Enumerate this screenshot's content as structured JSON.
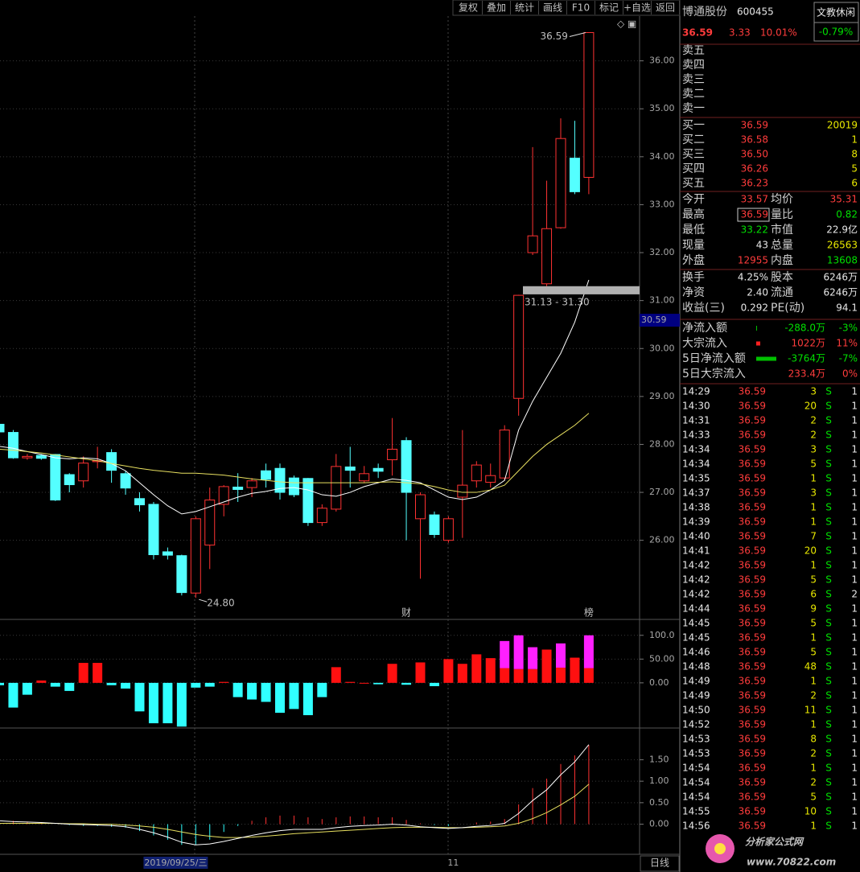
{
  "toolbar": {
    "buttons": [
      "复权",
      "叠加",
      "统计",
      "画线",
      "F10",
      "标记",
      "+自选",
      "返回"
    ]
  },
  "chart_data": [
    {
      "type": "candlestick",
      "categories": [
        null,
        null,
        null,
        null,
        null,
        null,
        null,
        null,
        null,
        null,
        null,
        null,
        "2019/09/25/三",
        null,
        null,
        null,
        null,
        null,
        null,
        null,
        null,
        null,
        null,
        null,
        null,
        null,
        null,
        null,
        null,
        null,
        null,
        null,
        "11",
        null,
        null,
        null,
        null,
        null,
        null,
        null,
        null,
        null,
        null
      ],
      "open": [
        28.42,
        28.25,
        27.72,
        27.77,
        27.79,
        27.37,
        27.24,
        27.64,
        27.83,
        27.39,
        26.87,
        26.75,
        25.76,
        25.68,
        24.9,
        25.9,
        26.75,
        27.11,
        27.1,
        27.45,
        27.5,
        27.3,
        27.29,
        26.37,
        26.65,
        27.53,
        27.24,
        27.5,
        27.68,
        28.08,
        26.45,
        26.53,
        26.0,
        26.9,
        27.24,
        27.21,
        27.3,
        28.96,
        32.0,
        31.35,
        32.52,
        33.97,
        33.57
      ],
      "high": [
        28.45,
        28.3,
        27.8,
        27.8,
        27.8,
        27.4,
        27.75,
        27.95,
        27.9,
        27.45,
        27.0,
        26.8,
        25.85,
        25.7,
        26.5,
        27.1,
        27.15,
        27.4,
        27.3,
        27.6,
        27.6,
        27.35,
        27.3,
        26.75,
        27.8,
        27.95,
        27.55,
        27.6,
        28.55,
        28.15,
        27.0,
        26.6,
        26.5,
        28.3,
        27.65,
        27.6,
        28.4,
        31.12,
        34.2,
        33.5,
        34.8,
        34.75,
        36.59
      ],
      "low": [
        28.2,
        27.7,
        27.68,
        27.68,
        26.82,
        27.0,
        27.1,
        27.5,
        27.2,
        26.95,
        26.6,
        25.6,
        25.6,
        24.85,
        24.8,
        25.4,
        26.5,
        26.8,
        26.9,
        27.1,
        26.85,
        26.9,
        26.3,
        26.3,
        26.6,
        27.1,
        27.2,
        27.3,
        27.35,
        26.0,
        25.2,
        26.05,
        25.95,
        26.05,
        27.1,
        27.1,
        27.25,
        28.6,
        31.95,
        31.3,
        32.5,
        33.22,
        33.22
      ],
      "close": [
        28.26,
        27.72,
        27.75,
        27.71,
        26.84,
        27.16,
        27.61,
        27.66,
        27.46,
        27.09,
        26.74,
        25.7,
        25.69,
        24.91,
        26.45,
        26.84,
        27.12,
        27.06,
        27.24,
        27.27,
        27.0,
        26.95,
        26.37,
        26.67,
        27.54,
        27.46,
        27.39,
        27.44,
        27.9,
        27.0,
        26.95,
        26.12,
        26.45,
        27.15,
        27.57,
        27.35,
        28.3,
        31.11,
        32.35,
        32.5,
        34.38,
        33.27,
        36.59
      ],
      "series": [
        {
          "color": "#ffffff",
          "values": [
            27.96,
            27.92,
            27.85,
            27.79,
            27.72,
            27.7,
            27.72,
            27.7,
            27.6,
            27.45,
            27.2,
            26.95,
            26.72,
            26.55,
            26.6,
            26.7,
            26.8,
            26.9,
            26.98,
            27.02,
            27.08,
            27.1,
            27.05,
            26.95,
            26.92,
            27.0,
            27.12,
            27.2,
            27.28,
            27.25,
            27.2,
            27.05,
            26.9,
            26.85,
            26.9,
            27.05,
            27.25,
            28.3,
            28.9,
            29.4,
            29.9,
            30.55,
            31.43
          ]
        },
        {
          "color": "#e8e060",
          "values": [
            27.9,
            27.88,
            27.85,
            27.82,
            27.78,
            27.74,
            27.7,
            27.66,
            27.6,
            27.55,
            27.5,
            27.46,
            27.43,
            27.4,
            27.4,
            27.38,
            27.36,
            27.32,
            27.28,
            27.25,
            27.22,
            27.2,
            27.2,
            27.2,
            27.2,
            27.2,
            27.2,
            27.21,
            27.22,
            27.2,
            27.18,
            27.12,
            27.05,
            27.0,
            27.0,
            27.05,
            27.15,
            27.45,
            27.75,
            28.0,
            28.2,
            28.4,
            28.65
          ]
        }
      ],
      "colors": {
        "up": "#ff3232",
        "down": "#54ffff"
      },
      "ylim": [
        24.35,
        36.9
      ],
      "yticks": [
        {
          "value": 26,
          "label": "26.00"
        },
        {
          "value": 27,
          "label": "27.00"
        },
        {
          "value": 28,
          "label": "28.00"
        },
        {
          "value": 29,
          "label": "29.00"
        },
        {
          "value": 30,
          "label": "30.00"
        },
        {
          "value": 31,
          "label": "31.00"
        },
        {
          "value": 32,
          "label": "32.00"
        },
        {
          "value": 33,
          "label": "33.00"
        },
        {
          "value": 34,
          "label": "34.00"
        },
        {
          "value": 35,
          "label": "35.00"
        },
        {
          "value": 36,
          "label": "36.00"
        }
      ],
      "grid": true,
      "high_label": {
        "value": 36.59,
        "label": "36.59"
      },
      "low_label": {
        "value": 24.8,
        "label": "24.80"
      },
      "band": {
        "low": 31.13,
        "high": 31.3,
        "label": "31.13 - 31.30"
      },
      "cursor_price": {
        "value": 30.59,
        "label": "30.59"
      },
      "markers": [
        null,
        null,
        null,
        null,
        null,
        null,
        null,
        null,
        null,
        null,
        null,
        null,
        null,
        null,
        null,
        null,
        null,
        null,
        null,
        null,
        null,
        null,
        null,
        null,
        null,
        null,
        null,
        null,
        null,
        "财",
        null,
        null,
        null,
        null,
        null,
        null,
        null,
        null,
        null,
        null,
        null,
        null,
        "榜"
      ],
      "period": "日线"
    },
    {
      "type": "bar",
      "values": [
        -5,
        -52,
        -25,
        5,
        -8,
        -17,
        42,
        42,
        -5,
        -12,
        -60,
        -85,
        -85,
        -92,
        -10,
        -8,
        2,
        -30,
        -35,
        -40,
        -63,
        -55,
        -68,
        -30,
        33,
        2,
        0,
        -3,
        40,
        -4,
        43,
        -7,
        50,
        40,
        60,
        52,
        31,
        29,
        29,
        70,
        32,
        53,
        31
      ],
      "extra": [
        null,
        null,
        null,
        null,
        null,
        null,
        null,
        null,
        null,
        null,
        null,
        null,
        null,
        null,
        null,
        null,
        null,
        null,
        null,
        null,
        null,
        null,
        null,
        null,
        null,
        null,
        null,
        null,
        null,
        null,
        null,
        null,
        null,
        null,
        null,
        null,
        57,
        71,
        46,
        null,
        51,
        null,
        69
      ],
      "colors": {
        "up": "#ff1010",
        "down": "#30ffff",
        "extra": "#ff20ff"
      },
      "ylim": [
        -95,
        125
      ],
      "yticks": [
        {
          "value": 0,
          "label": "0.00"
        },
        {
          "value": 50,
          "label": "50.00"
        },
        {
          "value": 100,
          "label": "100.0"
        }
      ]
    },
    {
      "type": "macd",
      "dif": [
        0.08,
        0.06,
        0.05,
        0.04,
        0.02,
        0.0,
        -0.01,
        -0.02,
        -0.03,
        -0.06,
        -0.12,
        -0.2,
        -0.3,
        -0.42,
        -0.48,
        -0.46,
        -0.4,
        -0.33,
        -0.26,
        -0.2,
        -0.15,
        -0.12,
        -0.12,
        -0.12,
        -0.08,
        -0.05,
        -0.03,
        -0.02,
        0.0,
        -0.02,
        -0.06,
        -0.08,
        -0.1,
        -0.08,
        -0.05,
        -0.03,
        0.02,
        0.25,
        0.55,
        0.8,
        1.15,
        1.45,
        1.85
      ],
      "dea": [
        0.02,
        0.02,
        0.02,
        0.02,
        0.02,
        0.01,
        0.01,
        0.0,
        0.0,
        -0.02,
        -0.04,
        -0.07,
        -0.12,
        -0.18,
        -0.24,
        -0.28,
        -0.31,
        -0.31,
        -0.3,
        -0.28,
        -0.25,
        -0.22,
        -0.2,
        -0.18,
        -0.16,
        -0.14,
        -0.12,
        -0.1,
        -0.08,
        -0.07,
        -0.07,
        -0.07,
        -0.08,
        -0.08,
        -0.07,
        -0.06,
        -0.04,
        0.02,
        0.13,
        0.27,
        0.45,
        0.65,
        0.93
      ],
      "macd": [
        0.12,
        0.08,
        0.06,
        0.04,
        0.0,
        -0.02,
        -0.04,
        -0.04,
        -0.06,
        -0.08,
        -0.16,
        -0.26,
        -0.36,
        -0.48,
        -0.48,
        -0.36,
        -0.18,
        -0.04,
        0.08,
        0.16,
        0.2,
        0.2,
        0.16,
        0.12,
        0.16,
        0.18,
        0.18,
        0.16,
        0.16,
        0.1,
        0.02,
        -0.02,
        -0.04,
        0.0,
        0.04,
        0.06,
        0.12,
        0.46,
        0.84,
        1.06,
        1.4,
        1.6,
        1.84
      ],
      "colors": {
        "dif": "#ffffff",
        "dea": "#e8e060",
        "up": "#ff3232",
        "down": "#30ffff"
      },
      "ylim": [
        -0.7,
        2.2
      ],
      "yticks": [
        {
          "value": 0,
          "label": "0.00"
        },
        {
          "value": 0.5,
          "label": "0.50"
        },
        {
          "value": 1,
          "label": "1.00"
        },
        {
          "value": 1.5,
          "label": "1.50"
        }
      ]
    }
  ],
  "quote": {
    "name": "博通股份",
    "code": "600455",
    "sector": "文教休闲",
    "sector_change": "-0.79%",
    "price": "36.59",
    "change": "3.33",
    "change_pct": "10.01%",
    "sell": [
      "卖五",
      "卖四",
      "卖三",
      "卖二",
      "卖一"
    ],
    "buy": [
      [
        "买一",
        "36.59",
        "20019"
      ],
      [
        "买二",
        "36.58",
        "1"
      ],
      [
        "买三",
        "36.50",
        "8"
      ],
      [
        "买四",
        "36.26",
        "5"
      ],
      [
        "买五",
        "36.23",
        "6"
      ]
    ],
    "stats": [
      [
        "今开",
        "33.57",
        "均价",
        "35.31"
      ],
      [
        "最高",
        "36.59",
        "量比",
        "0.82"
      ],
      [
        "最低",
        "33.22",
        "市值",
        "22.9亿"
      ],
      [
        "现量",
        "43",
        "总量",
        "26563"
      ],
      [
        "外盘",
        "12955",
        "内盘",
        "13608"
      ],
      [
        "换手",
        "4.25%",
        "股本",
        "6246万"
      ],
      [
        "净资",
        "2.40",
        "流通",
        "6246万"
      ],
      [
        "收益(三)",
        "0.292",
        "PE(动)",
        "94.1"
      ]
    ],
    "flows": [
      [
        "净流入额",
        "-288.0万",
        "-3%"
      ],
      [
        "大宗流入",
        "1022万",
        "11%"
      ],
      [
        "5日净流入额",
        "-3764万",
        "-7%"
      ],
      [
        "5日大宗流入",
        "233.4万",
        "0%"
      ]
    ]
  },
  "ticks": {
    "rows": [
      [
        "14:29",
        "36.59",
        "3",
        "S",
        "1"
      ],
      [
        "14:30",
        "36.59",
        "20",
        "S",
        "1"
      ],
      [
        "14:31",
        "36.59",
        "2",
        "S",
        "1"
      ],
      [
        "14:33",
        "36.59",
        "2",
        "S",
        "1"
      ],
      [
        "14:34",
        "36.59",
        "3",
        "S",
        "1"
      ],
      [
        "14:34",
        "36.59",
        "5",
        "S",
        "1"
      ],
      [
        "14:35",
        "36.59",
        "1",
        "S",
        "1"
      ],
      [
        "14:37",
        "36.59",
        "3",
        "S",
        "1"
      ],
      [
        "14:38",
        "36.59",
        "1",
        "S",
        "1"
      ],
      [
        "14:39",
        "36.59",
        "1",
        "S",
        "1"
      ],
      [
        "14:40",
        "36.59",
        "7",
        "S",
        "1"
      ],
      [
        "14:41",
        "36.59",
        "20",
        "S",
        "1"
      ],
      [
        "14:42",
        "36.59",
        "1",
        "S",
        "1"
      ],
      [
        "14:42",
        "36.59",
        "5",
        "S",
        "1"
      ],
      [
        "14:42",
        "36.59",
        "6",
        "S",
        "2"
      ],
      [
        "14:44",
        "36.59",
        "9",
        "S",
        "1"
      ],
      [
        "14:45",
        "36.59",
        "5",
        "S",
        "1"
      ],
      [
        "14:45",
        "36.59",
        "1",
        "S",
        "1"
      ],
      [
        "14:46",
        "36.59",
        "5",
        "S",
        "1"
      ],
      [
        "14:48",
        "36.59",
        "48",
        "S",
        "1"
      ],
      [
        "14:49",
        "36.59",
        "1",
        "S",
        "1"
      ],
      [
        "14:49",
        "36.59",
        "2",
        "S",
        "1"
      ],
      [
        "14:50",
        "36.59",
        "11",
        "S",
        "1"
      ],
      [
        "14:52",
        "36.59",
        "1",
        "S",
        "1"
      ],
      [
        "14:53",
        "36.59",
        "8",
        "S",
        "1"
      ],
      [
        "14:53",
        "36.59",
        "2",
        "S",
        "1"
      ],
      [
        "14:54",
        "36.59",
        "1",
        "S",
        "1"
      ],
      [
        "14:54",
        "36.59",
        "2",
        "S",
        "1"
      ],
      [
        "14:54",
        "36.59",
        "5",
        "S",
        "1"
      ],
      [
        "14:55",
        "36.59",
        "10",
        "S",
        "1"
      ],
      [
        "14:56",
        "36.59",
        "1",
        "S",
        "1"
      ]
    ]
  },
  "watermark": {
    "title": "分析家公式网",
    "url": "www.70822.com"
  }
}
